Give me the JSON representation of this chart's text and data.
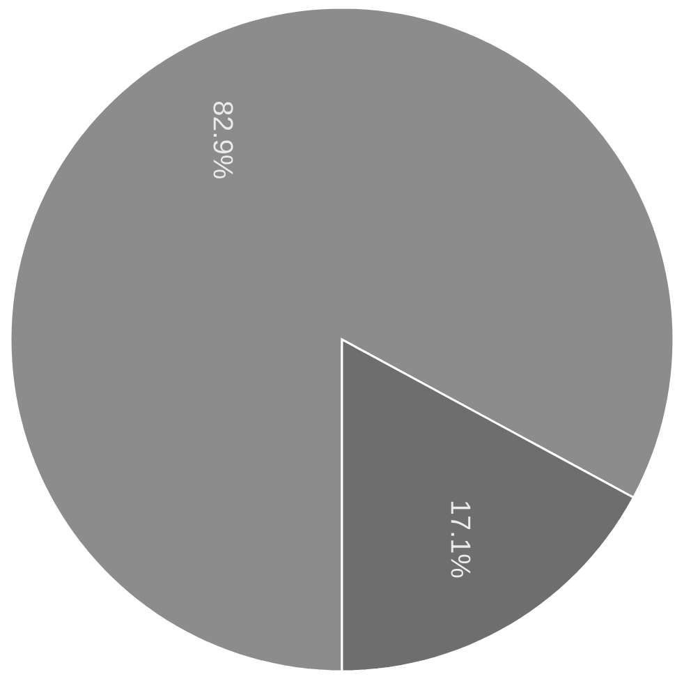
{
  "chart_data": {
    "type": "pie",
    "categories": [
      null,
      null
    ],
    "values": [
      82.9,
      17.1
    ],
    "value_labels": [
      "82.9%",
      "17.1%"
    ],
    "colors": [
      "#8c8c8c",
      "#6e6e6e"
    ]
  }
}
